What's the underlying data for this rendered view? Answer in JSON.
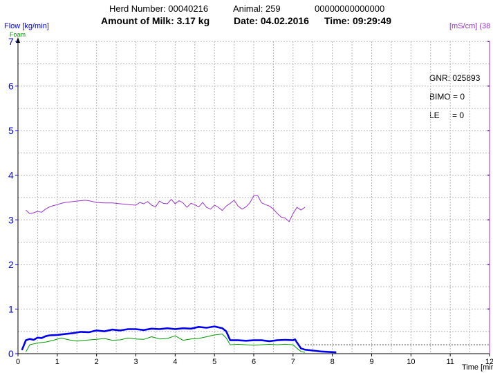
{
  "header": {
    "herd": "Herd Number: 00040216",
    "animal": "Animal: 259",
    "id": "00000000000000",
    "milk": "Amount of Milk: 3.17 kg",
    "date": "Date: 04.02.2016",
    "time": "Time: 09:29:49"
  },
  "info": {
    "gnr": "GNR: 025893",
    "bimo": "BIMO = 0",
    "le_label": "LE",
    "le_value": "= 0"
  },
  "colors": {
    "flow": "#0000ee",
    "foam": "#009900",
    "conductivity": "#9933cc",
    "grid": "#b4b4b4"
  },
  "chart_data": {
    "type": "line",
    "ylabel": "Flow [kg/min]",
    "y2label": "[mS/cm] (38",
    "xlabel": "Time [mir",
    "xlim": [
      0,
      12
    ],
    "ylim": [
      0,
      7
    ],
    "x_ticks": [
      "0",
      "1",
      "2",
      "3",
      "4",
      "5",
      "6",
      "7",
      "8",
      "9",
      "10",
      "11",
      "12"
    ],
    "y_ticks": [
      "0",
      "1",
      "2",
      "3",
      "4",
      "5",
      "6",
      "7"
    ],
    "threshold": 0.2,
    "series": [
      {
        "name": "Flow",
        "x": [
          0.1,
          0.2,
          0.3,
          0.4,
          0.5,
          0.6,
          0.7,
          0.8,
          1.0,
          1.2,
          1.4,
          1.6,
          1.8,
          2.0,
          2.2,
          2.4,
          2.6,
          2.8,
          3.0,
          3.2,
          3.4,
          3.6,
          3.8,
          4.0,
          4.2,
          4.4,
          4.6,
          4.8,
          5.0,
          5.2,
          5.3,
          5.4,
          5.6,
          5.8,
          6.0,
          6.2,
          6.4,
          6.6,
          6.8,
          7.0,
          7.05,
          7.1,
          7.2,
          7.3,
          7.5,
          7.7,
          7.9,
          8.1
        ],
        "values": [
          0.08,
          0.3,
          0.33,
          0.31,
          0.36,
          0.35,
          0.39,
          0.41,
          0.42,
          0.44,
          0.46,
          0.49,
          0.48,
          0.52,
          0.5,
          0.54,
          0.52,
          0.55,
          0.55,
          0.53,
          0.56,
          0.55,
          0.57,
          0.55,
          0.57,
          0.56,
          0.6,
          0.58,
          0.61,
          0.57,
          0.5,
          0.3,
          0.3,
          0.29,
          0.3,
          0.3,
          0.28,
          0.3,
          0.31,
          0.3,
          0.32,
          0.25,
          0.12,
          0.09,
          0.07,
          0.05,
          0.04,
          0.03
        ]
      },
      {
        "name": "Foam",
        "x": [
          0.2,
          0.3,
          0.4,
          0.5,
          0.7,
          0.9,
          1.1,
          1.3,
          1.5,
          1.7,
          2.0,
          2.2,
          2.4,
          2.6,
          2.8,
          3.0,
          3.2,
          3.4,
          3.6,
          3.8,
          4.0,
          4.2,
          4.4,
          4.6,
          4.8,
          5.0,
          5.2,
          5.3,
          5.4,
          5.6,
          5.8,
          6.0,
          6.2,
          6.4,
          6.6,
          6.8,
          7.0,
          7.1,
          7.2,
          7.3
        ],
        "values": [
          0.04,
          0.2,
          0.22,
          0.24,
          0.26,
          0.3,
          0.35,
          0.31,
          0.28,
          0.3,
          0.32,
          0.34,
          0.3,
          0.31,
          0.35,
          0.33,
          0.32,
          0.38,
          0.33,
          0.34,
          0.4,
          0.3,
          0.33,
          0.34,
          0.38,
          0.42,
          0.44,
          0.35,
          0.2,
          0.21,
          0.2,
          0.19,
          0.2,
          0.21,
          0.2,
          0.21,
          0.2,
          0.12,
          0.05,
          0.03
        ]
      },
      {
        "name": "Conductivity",
        "x": [
          0.2,
          0.3,
          0.4,
          0.5,
          0.6,
          0.7,
          0.8,
          0.9,
          1.0,
          1.1,
          1.2,
          1.4,
          1.6,
          1.7,
          1.8,
          2.0,
          2.2,
          2.4,
          2.6,
          2.8,
          3.0,
          3.1,
          3.2,
          3.3,
          3.4,
          3.5,
          3.6,
          3.7,
          3.8,
          3.9,
          4.0,
          4.1,
          4.2,
          4.3,
          4.4,
          4.5,
          4.6,
          4.7,
          4.8,
          4.9,
          5.0,
          5.1,
          5.2,
          5.3,
          5.4,
          5.5,
          5.6,
          5.7,
          5.8,
          5.9,
          6.0,
          6.1,
          6.2,
          6.3,
          6.4,
          6.5,
          6.6,
          6.7,
          6.8,
          6.9,
          7.0,
          7.1,
          7.2,
          7.3
        ],
        "values": [
          3.22,
          3.14,
          3.16,
          3.19,
          3.17,
          3.24,
          3.29,
          3.32,
          3.34,
          3.37,
          3.39,
          3.41,
          3.43,
          3.44,
          3.43,
          3.39,
          3.38,
          3.38,
          3.36,
          3.34,
          3.33,
          3.39,
          3.36,
          3.41,
          3.33,
          3.29,
          3.42,
          3.37,
          3.36,
          3.46,
          3.36,
          3.43,
          3.38,
          3.28,
          3.37,
          3.34,
          3.29,
          3.39,
          3.28,
          3.24,
          3.33,
          3.28,
          3.21,
          3.31,
          3.37,
          3.44,
          3.31,
          3.24,
          3.29,
          3.38,
          3.54,
          3.54,
          3.38,
          3.34,
          3.31,
          3.24,
          3.14,
          3.06,
          3.04,
          2.96,
          3.14,
          3.28,
          3.22,
          3.28
        ]
      }
    ]
  }
}
